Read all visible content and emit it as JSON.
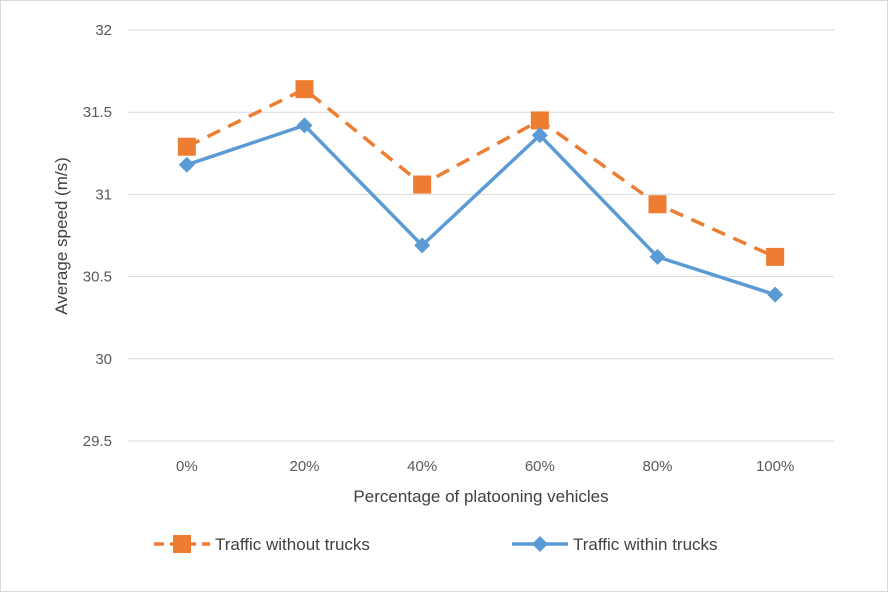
{
  "chart_data": {
    "type": "line",
    "categories": [
      "0%",
      "20%",
      "40%",
      "60%",
      "80%",
      "100%"
    ],
    "series": [
      {
        "name": "Traffic without trucks",
        "values": [
          31.29,
          31.64,
          31.06,
          31.45,
          30.94,
          30.62
        ],
        "color": "#ED7D31",
        "line_style": "dashed",
        "marker": "square"
      },
      {
        "name": "Traffic within trucks",
        "values": [
          31.18,
          31.42,
          30.69,
          31.36,
          30.62,
          30.39
        ],
        "color": "#5B9BD5",
        "line_style": "solid",
        "marker": "diamond"
      }
    ],
    "xlabel": "Percentage of platooning vehicles",
    "ylabel": "Average speed (m/s)",
    "ylim": [
      29.5,
      32
    ],
    "yticks": [
      "29.5",
      "30",
      "30.5",
      "31",
      "31.5",
      "32"
    ],
    "grid": true,
    "legend_position": "bottom"
  }
}
